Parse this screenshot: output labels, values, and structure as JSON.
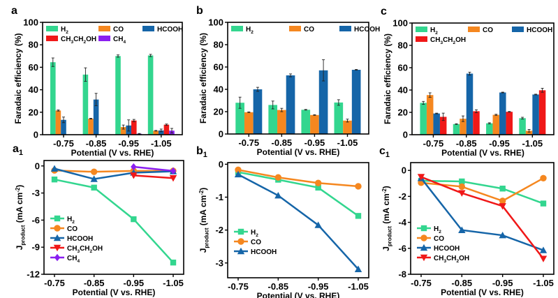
{
  "colors": {
    "H2": "#33d68f",
    "CO": "#f5871f",
    "HCOOH": "#1565a8",
    "CH3CH2OH": "#f01818",
    "CH4": "#8a1ff0"
  },
  "chart_data": [
    {
      "label": "a",
      "label_sub": "",
      "type": "bar",
      "xlabel": "Potential (V vs. RHE)",
      "ylabel": "Faradaic efficiency (%)",
      "categories": [
        "-0.75",
        "-0.85",
        "-0.95",
        "-1.05"
      ],
      "ylim": [
        0,
        100
      ],
      "yticks": [
        0,
        20,
        40,
        60,
        80,
        100
      ],
      "grid": false,
      "legend": "top",
      "series": [
        {
          "name": "H2",
          "values": [
            64.5,
            53.5,
            70,
            70.5
          ],
          "errors": [
            3.8,
            6,
            1,
            1
          ]
        },
        {
          "name": "CO",
          "values": [
            21.5,
            14.3,
            6.8,
            3.5
          ],
          "errors": [
            0.5,
            0.3,
            1.8,
            0.3
          ]
        },
        {
          "name": "HCOOH",
          "values": [
            13.2,
            31.3,
            8.2,
            3.8
          ],
          "errors": [
            2.5,
            5.5,
            5,
            1.2
          ]
        },
        {
          "name": "CH3CH2OH",
          "values": [
            null,
            null,
            12.6,
            8.9
          ],
          "errors": [
            null,
            null,
            1,
            0.6
          ]
        },
        {
          "name": "CH4",
          "values": [
            null,
            null,
            0.8,
            3.6
          ],
          "errors": [
            null,
            null,
            0.3,
            2
          ]
        }
      ]
    },
    {
      "label": "b",
      "label_sub": "",
      "type": "bar",
      "xlabel": "Potential (V vs. RHE)",
      "ylabel": "Faradaic efficiency (%)",
      "categories": [
        "-0.75",
        "-0.85",
        "-0.95",
        "-1.05"
      ],
      "ylim": [
        0,
        100
      ],
      "yticks": [
        0,
        20,
        40,
        60,
        80,
        100
      ],
      "grid": false,
      "legend": "top",
      "series": [
        {
          "name": "H2",
          "values": [
            28,
            26,
            21.7,
            28.2
          ],
          "errors": [
            5,
            3.5,
            0.3,
            2.5
          ]
        },
        {
          "name": "CO",
          "values": [
            19.5,
            21.5,
            17,
            12
          ],
          "errors": [
            0.3,
            1.5,
            0.3,
            1.3
          ]
        },
        {
          "name": "HCOOH",
          "values": [
            40,
            52.5,
            57,
            57.5
          ],
          "errors": [
            1.8,
            1.3,
            9.5,
            0.3
          ]
        }
      ]
    },
    {
      "label": "c",
      "label_sub": "",
      "type": "bar",
      "xlabel": "Potential (V vs. RHE)",
      "ylabel": "Faradaic efficiency (%)",
      "categories": [
        "-0.75",
        "-0.85",
        "-0.95",
        "-1.05"
      ],
      "ylim": [
        0,
        100
      ],
      "yticks": [
        0,
        20,
        40,
        60,
        80,
        100
      ],
      "grid": false,
      "legend": "top",
      "series": [
        {
          "name": "H2",
          "values": [
            28.5,
            9.5,
            10.2,
            14.8
          ],
          "errors": [
            1.3,
            0.3,
            0.5,
            0.8
          ]
        },
        {
          "name": "CO",
          "values": [
            35.5,
            14.3,
            17.8,
            3.5
          ],
          "errors": [
            2,
            2.5,
            0.5,
            1.2
          ]
        },
        {
          "name": "HCOOH",
          "values": [
            19,
            54.7,
            37.8,
            36
          ],
          "errors": [
            0.3,
            1.3,
            0.3,
            0.3
          ]
        },
        {
          "name": "CH3CH2OH",
          "values": [
            16,
            21,
            20.5,
            39.8
          ],
          "errors": [
            3.3,
            1.3,
            0.3,
            1.8
          ]
        }
      ]
    },
    {
      "label": "a",
      "label_sub": "1",
      "type": "line",
      "xlabel": "Potential (V vs. RHE)",
      "ylabel": "J_{product} (mA cm^{-2})",
      "categories": [
        "-0.75",
        "-0.85",
        "-0.95",
        "-1.05"
      ],
      "ylim": [
        -12,
        0.6
      ],
      "yticks": [
        0,
        -3,
        -6,
        -9,
        -12
      ],
      "grid": false,
      "legend": "bottom-left",
      "series": [
        {
          "name": "H2",
          "values": [
            -1.5,
            -2.4,
            -5.9,
            -10.7
          ]
        },
        {
          "name": "CO",
          "values": [
            -0.5,
            -0.65,
            -0.55,
            -0.55
          ]
        },
        {
          "name": "HCOOH",
          "values": [
            -0.3,
            -1.45,
            -0.75,
            -0.6
          ]
        },
        {
          "name": "CH3CH2OH",
          "values": [
            null,
            null,
            -1.05,
            -1.35
          ]
        },
        {
          "name": "CH4",
          "values": [
            null,
            null,
            -0.1,
            -0.55
          ]
        }
      ]
    },
    {
      "label": "b",
      "label_sub": "1",
      "type": "line",
      "xlabel": "Potential (V vs. RHE)",
      "ylabel": "J_{product} (mA cm^{-2})",
      "categories": [
        "-0.75",
        "-0.85",
        "-0.95",
        "-1.05"
      ],
      "ylim": [
        -3.45,
        0.05
      ],
      "yticks": [
        0,
        -1,
        -2,
        -3
      ],
      "grid": false,
      "legend": "bottom-left",
      "series": [
        {
          "name": "H2",
          "values": [
            -0.24,
            -0.47,
            -0.71,
            -1.57
          ]
        },
        {
          "name": "CO",
          "values": [
            -0.17,
            -0.4,
            -0.57,
            -0.67
          ]
        },
        {
          "name": "HCOOH",
          "values": [
            -0.31,
            -0.95,
            -1.85,
            -3.19
          ]
        }
      ]
    },
    {
      "label": "c",
      "label_sub": "1",
      "type": "line",
      "xlabel": "Potential (V vs. RHE)",
      "ylabel": "J_{product} (mA cm^{-2})",
      "categories": [
        "-0.75",
        "-0.85",
        "-0.95",
        "-1.05"
      ],
      "ylim": [
        -8,
        0.6
      ],
      "yticks": [
        0,
        -2,
        -4,
        -6,
        -8
      ],
      "grid": false,
      "legend": "bottom-left",
      "series": [
        {
          "name": "H2",
          "values": [
            -0.8,
            -0.85,
            -1.4,
            -2.55
          ]
        },
        {
          "name": "CO",
          "values": [
            -0.95,
            -1.25,
            -2.35,
            -0.6
          ]
        },
        {
          "name": "HCOOH",
          "values": [
            -0.6,
            -4.6,
            -5.0,
            -6.15
          ]
        },
        {
          "name": "CH3CH2OH",
          "values": [
            -0.5,
            -1.75,
            -2.75,
            -6.8
          ]
        }
      ]
    }
  ]
}
